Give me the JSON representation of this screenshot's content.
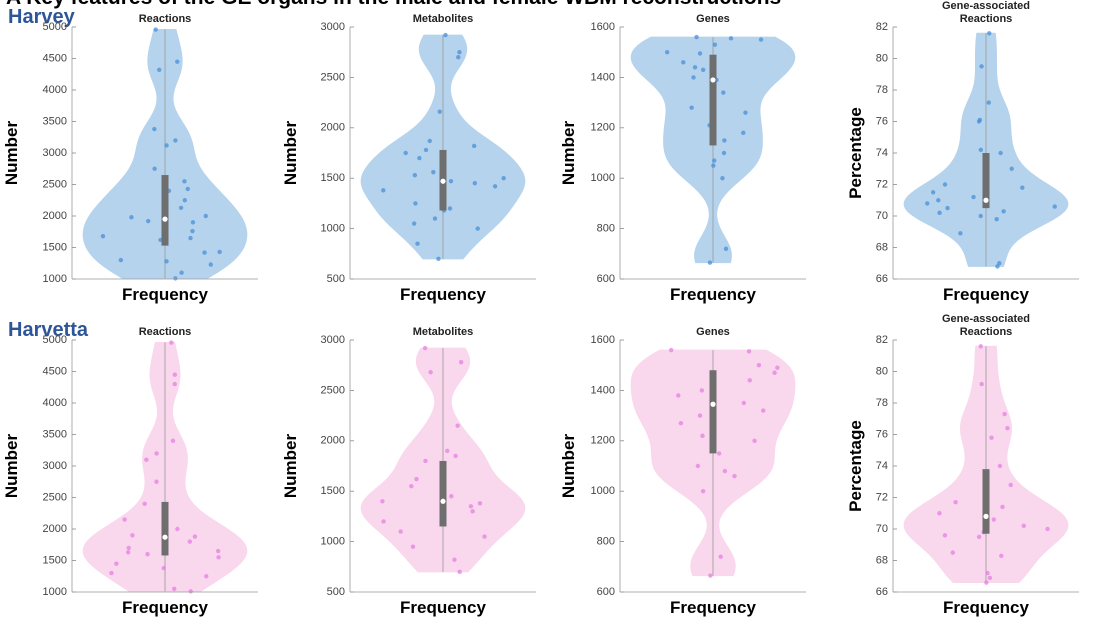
{
  "heading": "A  Key features of the GE organs in the male and female WBM reconstructions",
  "groups": [
    "Harvey",
    "Harvetta"
  ],
  "chart_data": [
    {
      "type": "violin",
      "title": "Reactions",
      "ylabel": "Number",
      "xlabel": "Frequency",
      "ylim": [
        1000,
        5000
      ],
      "yticks": [
        1000,
        1500,
        2000,
        2500,
        3000,
        3500,
        4000,
        4500,
        5000
      ],
      "color": "#aecfea",
      "point_color": "#4a8fd6",
      "median": 1950,
      "q1": 1530,
      "q3": 2650,
      "values": [
        4960,
        4450,
        4320,
        3380,
        3200,
        3120,
        2750,
        2550,
        2430,
        2400,
        2250,
        2130,
        2000,
        1980,
        1920,
        1900,
        1760,
        1680,
        1650,
        1620,
        1430,
        1420,
        1300,
        1280,
        1230,
        1100,
        1010
      ]
    },
    {
      "type": "violin",
      "title": "Metabolites",
      "ylabel": "Number",
      "xlabel": "Frequency",
      "ylim": [
        500,
        3000
      ],
      "yticks": [
        500,
        1000,
        1500,
        2000,
        2500,
        3000
      ],
      "color": "#aecfea",
      "point_color": "#4a8fd6",
      "median": 1470,
      "q1": 1180,
      "q3": 1780,
      "values": [
        2920,
        2750,
        2700,
        2160,
        1870,
        1820,
        1780,
        1750,
        1700,
        1560,
        1530,
        1500,
        1470,
        1450,
        1420,
        1380,
        1250,
        1200,
        1180,
        1100,
        1050,
        1000,
        850,
        700
      ]
    },
    {
      "type": "violin",
      "title": "Genes",
      "ylabel": "Number",
      "xlabel": "Frequency",
      "ylim": [
        600,
        1600
      ],
      "yticks": [
        600,
        800,
        1000,
        1200,
        1400,
        1600
      ],
      "color": "#aecfea",
      "point_color": "#4a8fd6",
      "median": 1390,
      "q1": 1130,
      "q3": 1490,
      "values": [
        1560,
        1555,
        1550,
        1530,
        1500,
        1495,
        1460,
        1440,
        1430,
        1400,
        1390,
        1340,
        1280,
        1260,
        1210,
        1180,
        1150,
        1100,
        1070,
        1050,
        1000,
        720,
        665
      ]
    },
    {
      "type": "violin",
      "title": "Gene-associated Reactions",
      "ylabel": "Percentage",
      "xlabel": "Frequency",
      "ylim": [
        66,
        82
      ],
      "yticks": [
        66,
        68,
        70,
        72,
        74,
        76,
        78,
        80,
        82
      ],
      "color": "#aecfea",
      "point_color": "#4a8fd6",
      "median": 71.0,
      "q1": 70.5,
      "q3": 74.0,
      "values": [
        81.6,
        79.5,
        77.2,
        76.1,
        76.0,
        74.2,
        74.0,
        73.0,
        72.0,
        71.8,
        71.5,
        71.2,
        71.0,
        70.8,
        70.6,
        70.5,
        70.3,
        70.2,
        70.0,
        69.8,
        68.9,
        67.0,
        66.8
      ]
    },
    {
      "type": "violin",
      "title": "Reactions",
      "ylabel": "Number",
      "xlabel": "Frequency",
      "ylim": [
        1000,
        5000
      ],
      "yticks": [
        1000,
        1500,
        2000,
        2500,
        3000,
        3500,
        4000,
        4500,
        5000
      ],
      "color": "#f9d3ea",
      "point_color": "#e47fe3",
      "median": 1870,
      "q1": 1580,
      "q3": 2430,
      "values": [
        4960,
        4450,
        4300,
        3400,
        3200,
        3100,
        2750,
        2400,
        2150,
        2000,
        1900,
        1880,
        1850,
        1800,
        1700,
        1650,
        1630,
        1600,
        1550,
        1450,
        1380,
        1300,
        1250,
        1050,
        1010
      ]
    },
    {
      "type": "violin",
      "title": "Metabolites",
      "ylabel": "Number",
      "xlabel": "Frequency",
      "ylim": [
        500,
        3000
      ],
      "yticks": [
        500,
        1000,
        1500,
        2000,
        2500,
        3000
      ],
      "color": "#f9d3ea",
      "point_color": "#e47fe3",
      "median": 1400,
      "q1": 1150,
      "q3": 1800,
      "values": [
        2920,
        2780,
        2680,
        2150,
        1900,
        1850,
        1800,
        1620,
        1550,
        1450,
        1400,
        1380,
        1350,
        1300,
        1250,
        1200,
        1100,
        1050,
        950,
        820,
        700
      ]
    },
    {
      "type": "violin",
      "title": "Genes",
      "ylabel": "Number",
      "xlabel": "Frequency",
      "ylim": [
        600,
        1600
      ],
      "yticks": [
        600,
        800,
        1000,
        1200,
        1400,
        1600
      ],
      "color": "#f9d3ea",
      "point_color": "#e47fe3",
      "median": 1345,
      "q1": 1150,
      "q3": 1480,
      "values": [
        1560,
        1555,
        1500,
        1490,
        1470,
        1440,
        1400,
        1380,
        1350,
        1320,
        1300,
        1270,
        1220,
        1200,
        1150,
        1100,
        1080,
        1060,
        1000,
        740,
        665
      ]
    },
    {
      "type": "violin",
      "title": "Gene-associated Reactions",
      "ylabel": "Percentage",
      "xlabel": "Frequency",
      "ylim": [
        66,
        82
      ],
      "yticks": [
        66,
        68,
        70,
        72,
        74,
        76,
        78,
        80,
        82
      ],
      "color": "#f9d3ea",
      "point_color": "#e47fe3",
      "median": 70.8,
      "q1": 69.7,
      "q3": 73.8,
      "values": [
        81.6,
        79.2,
        77.3,
        76.4,
        75.8,
        74.0,
        72.8,
        71.7,
        71.4,
        71.0,
        70.9,
        70.6,
        70.2,
        70.0,
        69.8,
        69.6,
        69.5,
        68.5,
        68.3,
        67.2,
        66.9,
        66.6
      ]
    }
  ]
}
